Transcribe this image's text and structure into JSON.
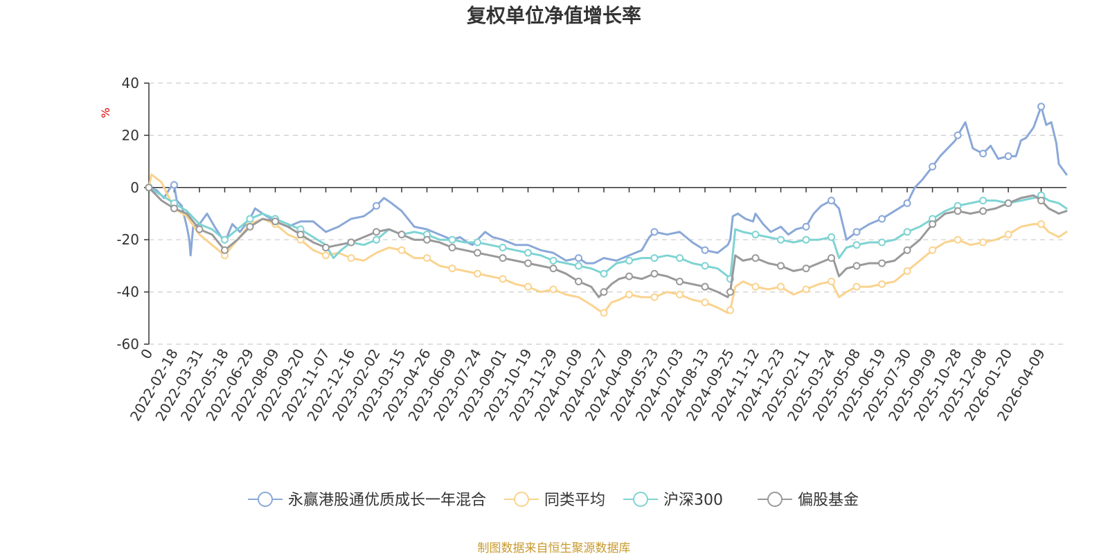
{
  "chart_data": {
    "type": "line",
    "title": "复权单位净值增长率",
    "ylabel": "%",
    "ylim": [
      -60,
      40
    ],
    "yticks": [
      40,
      20,
      0,
      -20,
      -40,
      -60
    ],
    "grid": "horizontal dashed",
    "legend_position": "bottom",
    "x_tick_labels": [
      "0",
      "2022-02-18",
      "2022-03-31",
      "2022-05-18",
      "2022-06-29",
      "2022-08-09",
      "2022-09-20",
      "2022-11-07",
      "2022-12-16",
      "2023-02-02",
      "2023-03-15",
      "2023-04-26",
      "2023-06-09",
      "2023-07-24",
      "2023-09-01",
      "2023-10-19",
      "2023-11-29",
      "2024-01-09",
      "2024-02-27",
      "2024-04-09",
      "2024-05-23",
      "2024-07-03",
      "2024-08-13",
      "2024-09-25",
      "2024-11-12",
      "2024-12-23",
      "2025-02-11",
      "2025-03-24",
      "2025-05-08",
      "2025-06-19",
      "2025-07-30",
      "2025-09-09",
      "2025-10-28",
      "2025-12-08",
      "2026-01-20",
      "2026-04-09"
    ],
    "x_positions": [
      0,
      1,
      2,
      3,
      4,
      5,
      6,
      7,
      8,
      9,
      10,
      11,
      12,
      13,
      14,
      15,
      16,
      17,
      18,
      19,
      20,
      21,
      22,
      23,
      24,
      25,
      26,
      27,
      28,
      29,
      30,
      31,
      32,
      33,
      34,
      35.3
    ],
    "series": [
      {
        "name": "永赢港股通优质成长一年混合",
        "color": "#8aa8d8",
        "x": [
          0,
          0.3,
          0.6,
          0.85,
          1.0,
          1.1,
          1.3,
          1.5,
          1.6,
          1.65,
          1.75,
          2.0,
          2.3,
          2.6,
          3.0,
          3.3,
          3.6,
          4.0,
          4.2,
          4.5,
          5.0,
          5.5,
          6.0,
          6.5,
          7.0,
          7.5,
          8.0,
          8.5,
          8.8,
          9.0,
          9.3,
          9.6,
          10.0,
          10.5,
          11.0,
          11.5,
          12.0,
          12.3,
          12.6,
          12.8,
          13.0,
          13.3,
          13.6,
          14.0,
          14.5,
          15.0,
          15.5,
          16.0,
          16.5,
          17.0,
          17.3,
          17.6,
          18.0,
          18.5,
          19.0,
          19.5,
          19.8,
          20.0,
          20.5,
          21.0,
          21.5,
          22.0,
          22.5,
          22.9,
          23.0,
          23.1,
          23.3,
          23.6,
          23.9,
          24.0,
          24.3,
          24.6,
          25.0,
          25.3,
          25.6,
          26.0,
          26.3,
          26.6,
          27.0,
          27.1,
          27.3,
          27.6,
          28.0,
          28.5,
          29.0,
          29.5,
          30.0,
          30.3,
          30.6,
          31.0,
          31.3,
          31.6,
          31.9,
          32.0,
          32.3,
          32.6,
          33.0,
          33.3,
          33.6,
          34.0,
          34.3,
          34.5,
          34.7,
          35.0,
          35.3,
          35.5,
          35.7,
          35.9,
          36.0,
          36.3
        ],
        "values": [
          0,
          -1,
          -4,
          0,
          1,
          -5,
          -7,
          -15,
          -20,
          -26,
          -15,
          -14,
          -10,
          -15,
          -21,
          -14,
          -17,
          -12,
          -8,
          -10,
          -13,
          -15,
          -13,
          -13,
          -17,
          -15,
          -12,
          -11,
          -9,
          -7,
          -4,
          -6,
          -9,
          -15,
          -16,
          -18,
          -20,
          -19,
          -21,
          -22,
          -20,
          -17,
          -19,
          -20,
          -22,
          -22,
          -24,
          -25,
          -28,
          -27,
          -29,
          -29,
          -27,
          -28,
          -26,
          -24,
          -19,
          -17,
          -18,
          -17,
          -21,
          -24,
          -25,
          -22,
          -20,
          -11,
          -10,
          -12,
          -13,
          -10,
          -14,
          -17,
          -15,
          -18,
          -16,
          -15,
          -10,
          -7,
          -5,
          -6,
          -8,
          -20,
          -17,
          -14,
          -12,
          -9,
          -6,
          0,
          3,
          8,
          12,
          15,
          18,
          20,
          25,
          15,
          13,
          16,
          11,
          12,
          12,
          18,
          19,
          23,
          31,
          24,
          25,
          17,
          9,
          5
        ],
        "markers": [
          0,
          1,
          9,
          17,
          20,
          22,
          26,
          27,
          28,
          29,
          30,
          31,
          32,
          33,
          34,
          35.3
        ]
      },
      {
        "name": "同类平均",
        "color": "#fad38e",
        "x": [
          0,
          0.1,
          0.5,
          1.0,
          1.5,
          2.0,
          2.5,
          3.0,
          3.5,
          4.0,
          4.5,
          5.0,
          5.5,
          6.0,
          6.5,
          7.0,
          7.5,
          8.0,
          8.5,
          9.0,
          9.5,
          10.0,
          10.5,
          11.0,
          11.5,
          12.0,
          12.5,
          13.0,
          13.5,
          14.0,
          14.5,
          15.0,
          15.5,
          16.0,
          16.5,
          17.0,
          17.5,
          17.8,
          18.0,
          18.3,
          18.6,
          19.0,
          19.5,
          20.0,
          20.5,
          21.0,
          21.5,
          22.0,
          22.5,
          22.9,
          23.0,
          23.2,
          23.5,
          24.0,
          24.5,
          25.0,
          25.5,
          26.0,
          26.5,
          27.0,
          27.1,
          27.3,
          27.6,
          28.0,
          28.5,
          29.0,
          29.5,
          30.0,
          30.5,
          31.0,
          31.5,
          32.0,
          32.5,
          33.0,
          33.5,
          34.0,
          34.5,
          35.0,
          35.3,
          35.6,
          36.0,
          36.3
        ],
        "values": [
          0,
          5,
          2,
          -8,
          -11,
          -18,
          -22,
          -26,
          -20,
          -14,
          -12,
          -14,
          -18,
          -20,
          -24,
          -26,
          -25,
          -27,
          -28,
          -25,
          -23,
          -24,
          -27,
          -27,
          -30,
          -31,
          -32,
          -33,
          -34,
          -35,
          -37,
          -38,
          -40,
          -39,
          -41,
          -42,
          -45,
          -47,
          -48,
          -44,
          -43,
          -41,
          -42,
          -42,
          -40,
          -41,
          -43,
          -44,
          -46,
          -48,
          -47,
          -38,
          -36,
          -38,
          -39,
          -38,
          -41,
          -39,
          -37,
          -36,
          -38,
          -42,
          -40,
          -38,
          -38,
          -37,
          -36,
          -32,
          -28,
          -24,
          -21,
          -20,
          -22,
          -21,
          -20,
          -18,
          -15,
          -14,
          -14,
          -17,
          -19,
          -17
        ],
        "markers": [
          0,
          1,
          3,
          4,
          5,
          6,
          7,
          8,
          10,
          11,
          12,
          13,
          14,
          15,
          16,
          18,
          19,
          20,
          21,
          22,
          23,
          24,
          25,
          26,
          27,
          28,
          29,
          30,
          31,
          32,
          33,
          34,
          35.3
        ]
      },
      {
        "name": "沪深300",
        "color": "#7ed3d3",
        "x": [
          0,
          0.5,
          1.0,
          1.5,
          2.0,
          2.5,
          3.0,
          3.5,
          4.0,
          4.5,
          5.0,
          5.5,
          6.0,
          6.5,
          7.0,
          7.3,
          7.6,
          8.0,
          8.5,
          9.0,
          9.5,
          10.0,
          10.5,
          11.0,
          11.5,
          12.0,
          12.5,
          13.0,
          13.5,
          14.0,
          14.5,
          15.0,
          15.5,
          16.0,
          16.5,
          17.0,
          17.5,
          18.0,
          18.5,
          19.0,
          19.5,
          20.0,
          20.5,
          21.0,
          21.5,
          22.0,
          22.5,
          22.9,
          23.0,
          23.2,
          23.5,
          24.0,
          24.5,
          25.0,
          25.5,
          26.0,
          26.5,
          27.0,
          27.1,
          27.3,
          27.6,
          28.0,
          28.5,
          29.0,
          29.5,
          30.0,
          30.5,
          31.0,
          31.5,
          32.0,
          32.5,
          33.0,
          33.5,
          34.0,
          34.5,
          35.0,
          35.3,
          35.6,
          36.0,
          36.3
        ],
        "values": [
          0,
          -3,
          -6,
          -9,
          -14,
          -16,
          -20,
          -16,
          -12,
          -10,
          -12,
          -14,
          -16,
          -19,
          -22,
          -27,
          -24,
          -21,
          -22,
          -20,
          -16,
          -18,
          -17,
          -18,
          -20,
          -20,
          -21,
          -21,
          -22,
          -23,
          -24,
          -25,
          -26,
          -28,
          -29,
          -30,
          -31,
          -33,
          -29,
          -28,
          -27,
          -27,
          -26,
          -27,
          -29,
          -30,
          -31,
          -34,
          -35,
          -16,
          -17,
          -18,
          -19,
          -20,
          -21,
          -20,
          -20,
          -19,
          -21,
          -27,
          -23,
          -22,
          -21,
          -21,
          -20,
          -17,
          -15,
          -12,
          -9,
          -7,
          -6,
          -5,
          -5,
          -6,
          -5,
          -4,
          -3,
          -5,
          -6,
          -8
        ],
        "markers": [
          0,
          1,
          3,
          4,
          5,
          6,
          8,
          9,
          10,
          11,
          12,
          13,
          14,
          15,
          16,
          17,
          18,
          19,
          20,
          21,
          22,
          23,
          24,
          25,
          26,
          27,
          28,
          29,
          30,
          31,
          32,
          33,
          34,
          35.3
        ]
      },
      {
        "name": "偏股基金",
        "color": "#999999",
        "x": [
          0,
          0.5,
          1.0,
          1.5,
          2.0,
          2.5,
          3.0,
          3.5,
          4.0,
          4.5,
          5.0,
          5.5,
          6.0,
          6.5,
          7.0,
          7.5,
          8.0,
          8.5,
          9.0,
          9.5,
          10.0,
          10.5,
          11.0,
          11.5,
          12.0,
          12.5,
          13.0,
          13.5,
          14.0,
          14.5,
          15.0,
          15.5,
          16.0,
          16.5,
          17.0,
          17.5,
          17.8,
          18.0,
          18.3,
          18.6,
          19.0,
          19.5,
          20.0,
          20.5,
          21.0,
          21.5,
          22.0,
          22.5,
          22.9,
          23.0,
          23.2,
          23.5,
          24.0,
          24.5,
          25.0,
          25.5,
          26.0,
          26.5,
          27.0,
          27.1,
          27.3,
          27.6,
          28.0,
          28.5,
          29.0,
          29.5,
          30.0,
          30.5,
          31.0,
          31.5,
          32.0,
          32.5,
          33.0,
          33.5,
          34.0,
          34.5,
          35.0,
          35.3,
          35.6,
          36.0,
          36.3
        ],
        "values": [
          0,
          -5,
          -8,
          -10,
          -16,
          -18,
          -24,
          -20,
          -15,
          -12,
          -13,
          -15,
          -18,
          -21,
          -23,
          -22,
          -21,
          -19,
          -17,
          -16,
          -18,
          -20,
          -20,
          -21,
          -23,
          -24,
          -25,
          -26,
          -27,
          -28,
          -29,
          -30,
          -31,
          -33,
          -36,
          -38,
          -42,
          -40,
          -37,
          -35,
          -34,
          -35,
          -33,
          -34,
          -36,
          -37,
          -38,
          -40,
          -42,
          -40,
          -26,
          -28,
          -27,
          -29,
          -30,
          -32,
          -31,
          -29,
          -27,
          -28,
          -34,
          -31,
          -30,
          -29,
          -29,
          -28,
          -24,
          -20,
          -14,
          -10,
          -9,
          -10,
          -9,
          -8,
          -6,
          -4,
          -3,
          -5,
          -8,
          -10,
          -9
        ],
        "markers": [
          0,
          1,
          2,
          3,
          4,
          5,
          6,
          7,
          8,
          9,
          10,
          11,
          12,
          13,
          14,
          15,
          16,
          17,
          18,
          19,
          20,
          21,
          22,
          23,
          24,
          25,
          26,
          27,
          28,
          29,
          30,
          31,
          32,
          33,
          34,
          35.3
        ]
      }
    ]
  },
  "source_note": "制图数据来自恒生聚源数据库"
}
